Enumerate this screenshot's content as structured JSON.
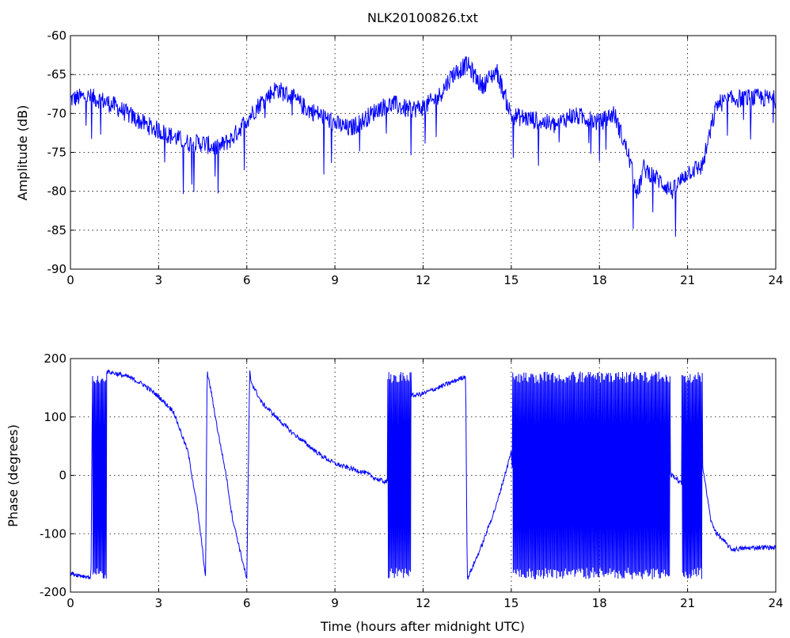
{
  "title": "NLK20100826.txt",
  "chart_data": [
    {
      "type": "line",
      "title": "NLK20100826.txt",
      "xlabel": "",
      "ylabel": "Amplitude (dB)",
      "xlim": [
        0,
        24
      ],
      "ylim": [
        -90,
        -60
      ],
      "xticks": [
        0,
        3,
        6,
        9,
        12,
        15,
        18,
        21,
        24
      ],
      "yticks": [
        -90,
        -85,
        -80,
        -75,
        -70,
        -65,
        -60
      ],
      "grid": true,
      "line_color": "#0000ff",
      "x": [
        0,
        0.5,
        1,
        1.5,
        2,
        2.5,
        3,
        3.5,
        4,
        4.5,
        5,
        5.5,
        6,
        6.5,
        7,
        7.5,
        8,
        8.5,
        9,
        9.5,
        10,
        10.5,
        11,
        11.5,
        12,
        12.5,
        13,
        13.5,
        14,
        14.5,
        15,
        15.5,
        16,
        16.5,
        17,
        17.5,
        18,
        18.5,
        19,
        19.3,
        19.5,
        20,
        20.5,
        21,
        21.5,
        22,
        22.5,
        23,
        23.5,
        24
      ],
      "y": [
        -68.2,
        -67.8,
        -68.2,
        -69,
        -70.2,
        -71.3,
        -72.2,
        -73,
        -73.8,
        -73.8,
        -74.5,
        -73.2,
        -70.8,
        -68.5,
        -66.8,
        -67.8,
        -69.3,
        -70.2,
        -71.3,
        -72,
        -70.8,
        -69.3,
        -68.8,
        -69.5,
        -69.2,
        -68,
        -65,
        -63.7,
        -66.5,
        -64.5,
        -70.3,
        -70.6,
        -71,
        -71.6,
        -70.3,
        -70.5,
        -71.2,
        -70,
        -75.5,
        -80.5,
        -77,
        -78.5,
        -80,
        -77.5,
        -76.8,
        -68.8,
        -68.2,
        -68,
        -68,
        -68.2
      ],
      "noise": 1.2
    },
    {
      "type": "line",
      "title": "",
      "xlabel": "Time (hours after midnight UTC)",
      "ylabel": "Phase (degrees)",
      "xlim": [
        0,
        24
      ],
      "ylim": [
        -200,
        200
      ],
      "xticks": [
        0,
        3,
        6,
        9,
        12,
        15,
        18,
        21,
        24
      ],
      "yticks": [
        -200,
        -100,
        0,
        100,
        200
      ],
      "grid": true,
      "line_color": "#0000ff",
      "x": [
        0,
        0.7,
        0.75,
        0.8,
        1.2,
        1.5,
        2,
        2.5,
        3,
        3.5,
        4,
        4.3,
        4.5,
        4.6,
        4.65,
        4.8,
        5,
        5.3,
        5.5,
        6,
        6.1,
        6.15,
        6.5,
        7,
        7.5,
        8,
        8.5,
        9,
        9.5,
        10,
        10.5,
        10.8,
        11,
        11.5,
        12,
        12.5,
        13,
        13.45,
        13.5,
        14,
        14.5,
        15,
        15.05,
        16,
        17,
        18,
        19,
        20,
        20.5,
        20.9,
        21,
        21.5,
        21.8,
        22,
        22.5,
        23,
        23.5,
        24
      ],
      "y": [
        -168,
        -175,
        178,
        178,
        178,
        175,
        168,
        155,
        135,
        110,
        40,
        -50,
        -130,
        -178,
        178,
        140,
        80,
        0,
        -70,
        -178,
        178,
        160,
        125,
        100,
        75,
        55,
        35,
        20,
        12,
        5,
        -8,
        -12,
        140,
        135,
        140,
        150,
        160,
        170,
        -178,
        -120,
        -50,
        40,
        0,
        0,
        0,
        0,
        0,
        0,
        0,
        -20,
        0,
        20,
        -80,
        -100,
        -127,
        -125,
        -123,
        -124
      ],
      "wild_ranges": [
        [
          0.75,
          1.25
        ],
        [
          10.8,
          11.6
        ],
        [
          15.05,
          20.4
        ],
        [
          20.8,
          21.5
        ]
      ],
      "noise": 4
    }
  ]
}
